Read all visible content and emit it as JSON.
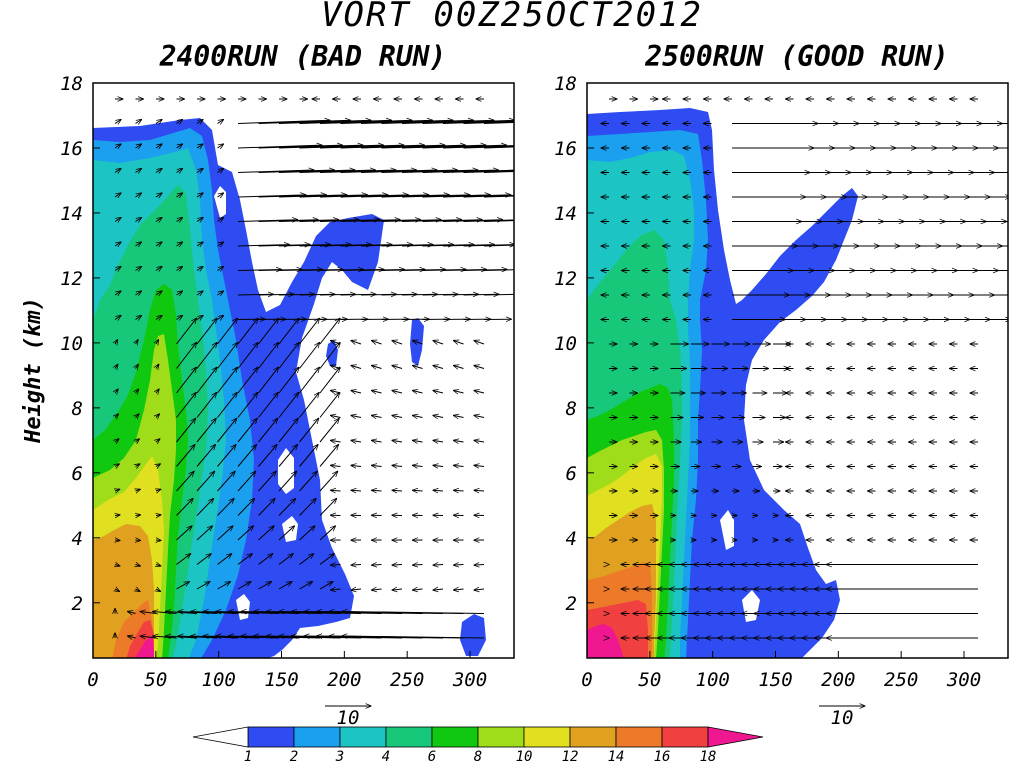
{
  "figure": {
    "title": "VORT 00Z25OCT2012",
    "ylabel": "Height (km)"
  },
  "chart_data": [
    {
      "type": "heatmap",
      "panel": "left",
      "title": "2400RUN (BAD RUN)",
      "xlim": [
        0,
        335
      ],
      "ylim": [
        0.3,
        18
      ],
      "xticks": [
        0,
        50,
        100,
        150,
        200,
        250,
        300
      ],
      "yticks": [
        2,
        4,
        6,
        8,
        10,
        12,
        14,
        16,
        18
      ],
      "quantity": "vorticity",
      "levels": [
        1,
        2,
        3,
        4,
        6,
        8,
        10,
        12,
        14,
        16,
        18
      ],
      "column_tops": [
        {
          "x": 0,
          "top": 16.6
        },
        {
          "x": 30,
          "top": 16.5
        },
        {
          "x": 60,
          "top": 16.4
        },
        {
          "x": 80,
          "top": 16.9
        },
        {
          "x": 95,
          "top": 15.8
        },
        {
          "x": 120,
          "top": 13.5
        },
        {
          "x": 150,
          "top": 11.8
        },
        {
          "x": 180,
          "top": 13.2
        },
        {
          "x": 215,
          "top": 13.9
        },
        {
          "x": 235,
          "top": 13.5
        }
      ],
      "core": {
        "x": 50,
        "height": 11.5
      },
      "max_value_region": {
        "x": 50,
        "height": 1.5,
        "value": 18
      },
      "vector_reference": {
        "label": "10",
        "magnitude": 10
      },
      "vector_features": [
        "strong inflow near surface from right",
        "strong outflow aloft above 12 km to right",
        "updraft tilted from x=60 to x=200"
      ]
    },
    {
      "type": "heatmap",
      "panel": "right",
      "title": "2500RUN (GOOD RUN)",
      "xlim": [
        0,
        335
      ],
      "ylim": [
        0.3,
        18
      ],
      "xticks": [
        0,
        50,
        100,
        150,
        200,
        250,
        300
      ],
      "yticks": [
        2,
        4,
        6,
        8,
        10,
        12,
        14,
        16,
        18
      ],
      "quantity": "vorticity",
      "levels": [
        1,
        2,
        3,
        4,
        6,
        8,
        10,
        12,
        14,
        16,
        18
      ],
      "column_tops": [
        {
          "x": 0,
          "top": 17.0
        },
        {
          "x": 40,
          "top": 17.3
        },
        {
          "x": 100,
          "top": 16.9
        },
        {
          "x": 130,
          "top": 11.2
        },
        {
          "x": 170,
          "top": 13.0
        },
        {
          "x": 210,
          "top": 14.8
        }
      ],
      "core": {
        "x": 45,
        "height": 8.7
      },
      "max_value_region": {
        "x": 25,
        "height": 1.2,
        "value": 18
      },
      "vector_reference": {
        "label": "10",
        "magnitude": 10
      },
      "vector_features": [
        "strong inflow near surface from right",
        "strong outflow aloft above 11 km to right",
        "weak vectors in interior"
      ]
    }
  ],
  "colorbar": {
    "labels": [
      "1",
      "2",
      "3",
      "4",
      "6",
      "8",
      "10",
      "12",
      "14",
      "16",
      "18"
    ],
    "colors": [
      "#ffffff",
      "#2f4bf2",
      "#1aa0ee",
      "#1cc4c4",
      "#18c87a",
      "#10c810",
      "#9fdc1a",
      "#e0e020",
      "#e0a020",
      "#ec7a28",
      "#f04040",
      "#f01890"
    ]
  }
}
